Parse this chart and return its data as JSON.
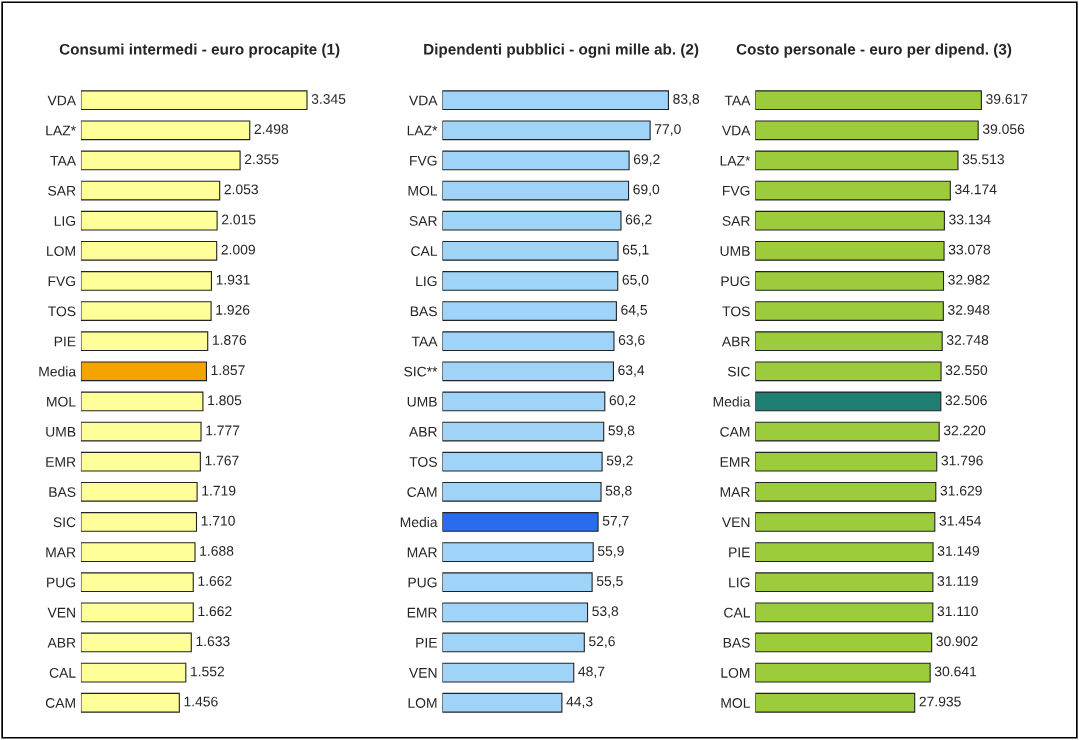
{
  "chart_data": [
    {
      "type": "bar",
      "orientation": "horizontal",
      "title": "Consumi intermedi - euro procapite (1)",
      "tick_labels": "y",
      "data_labels": true,
      "categories": [
        "VDA",
        "LAZ*",
        "TAA",
        "SAR",
        "LIG",
        "LOM",
        "FVG",
        "TOS",
        "PIE",
        "Media",
        "MOL",
        "UMB",
        "EMR",
        "BAS",
        "SIC",
        "MAR",
        "PUG",
        "VEN",
        "ABR",
        "CAL",
        "CAM"
      ],
      "values": [
        3345,
        2498,
        2355,
        2053,
        2015,
        2009,
        1931,
        1926,
        1876,
        1857,
        1805,
        1777,
        1767,
        1719,
        1710,
        1688,
        1662,
        1662,
        1633,
        1552,
        1456
      ],
      "value_labels": [
        "3.345",
        "2.498",
        "2.355",
        "2.053",
        "2.015",
        "2.009",
        "1.931",
        "1.926",
        "1.876",
        "1.857",
        "1.805",
        "1.777",
        "1.767",
        "1.719",
        "1.710",
        "1.688",
        "1.662",
        "1.662",
        "1.633",
        "1.552",
        "1.456"
      ],
      "colors": [
        "#ffff99",
        "#ffff99",
        "#ffff99",
        "#ffff99",
        "#ffff99",
        "#ffff99",
        "#ffff99",
        "#ffff99",
        "#ffff99",
        "#f5a300",
        "#ffff99",
        "#ffff99",
        "#ffff99",
        "#ffff99",
        "#ffff99",
        "#ffff99",
        "#ffff99",
        "#ffff99",
        "#ffff99",
        "#ffff99",
        "#ffff99"
      ]
    },
    {
      "type": "bar",
      "orientation": "horizontal",
      "title": "Dipendenti pubblici - ogni mille ab. (2)",
      "tick_labels": "y",
      "data_labels": true,
      "categories": [
        "VDA",
        "LAZ*",
        "FVG",
        "MOL",
        "SAR",
        "CAL",
        "LIG",
        "BAS",
        "TAA",
        "SIC**",
        "UMB",
        "ABR",
        "TOS",
        "CAM",
        "Media",
        "MAR",
        "PUG",
        "EMR",
        "PIE",
        "VEN",
        "LOM"
      ],
      "values": [
        83.8,
        77.0,
        69.2,
        69.0,
        66.2,
        65.1,
        65.0,
        64.5,
        63.6,
        63.4,
        60.2,
        59.8,
        59.2,
        58.8,
        57.7,
        55.9,
        55.5,
        53.8,
        52.6,
        48.7,
        44.3
      ],
      "value_labels": [
        "83,8",
        "77,0",
        "69,2",
        "69,0",
        "66,2",
        "65,1",
        "65,0",
        "64,5",
        "63,6",
        "63,4",
        "60,2",
        "59,8",
        "59,2",
        "58,8",
        "57,7",
        "55,9",
        "55,5",
        "53,8",
        "52,6",
        "48,7",
        "44,3"
      ],
      "colors": [
        "#9fd4f8",
        "#9fd4f8",
        "#9fd4f8",
        "#9fd4f8",
        "#9fd4f8",
        "#9fd4f8",
        "#9fd4f8",
        "#9fd4f8",
        "#9fd4f8",
        "#9fd4f8",
        "#9fd4f8",
        "#9fd4f8",
        "#9fd4f8",
        "#9fd4f8",
        "#2a6cf0",
        "#9fd4f8",
        "#9fd4f8",
        "#9fd4f8",
        "#9fd4f8",
        "#9fd4f8",
        "#9fd4f8"
      ]
    },
    {
      "type": "bar",
      "orientation": "horizontal",
      "title": "Costo personale - euro per dipend. (3)",
      "tick_labels": "y",
      "data_labels": true,
      "categories": [
        "TAA",
        "VDA",
        "LAZ*",
        "FVG",
        "SAR",
        "UMB",
        "PUG",
        "TOS",
        "ABR",
        "SIC",
        "Media",
        "CAM",
        "EMR",
        "MAR",
        "VEN",
        "PIE",
        "LIG",
        "CAL",
        "BAS",
        "LOM",
        "MOL"
      ],
      "values": [
        39617,
        39056,
        35513,
        34174,
        33134,
        33078,
        32982,
        32948,
        32748,
        32550,
        32506,
        32220,
        31796,
        31629,
        31454,
        31149,
        31119,
        31110,
        30902,
        30641,
        27935
      ],
      "value_labels": [
        "39.617",
        "39.056",
        "35.513",
        "34.174",
        "33.134",
        "33.078",
        "32.982",
        "32.948",
        "32.748",
        "32.550",
        "32.506",
        "32.220",
        "31.796",
        "31.629",
        "31.454",
        "31.149",
        "31.119",
        "31.110",
        "30.902",
        "30.641",
        "27.935"
      ],
      "colors": [
        "#9ccc3c",
        "#9ccc3c",
        "#9ccc3c",
        "#9ccc3c",
        "#9ccc3c",
        "#9ccc3c",
        "#9ccc3c",
        "#9ccc3c",
        "#9ccc3c",
        "#9ccc3c",
        "#1f7f72",
        "#9ccc3c",
        "#9ccc3c",
        "#9ccc3c",
        "#9ccc3c",
        "#9ccc3c",
        "#9ccc3c",
        "#9ccc3c",
        "#9ccc3c",
        "#9ccc3c",
        "#9ccc3c"
      ]
    }
  ]
}
